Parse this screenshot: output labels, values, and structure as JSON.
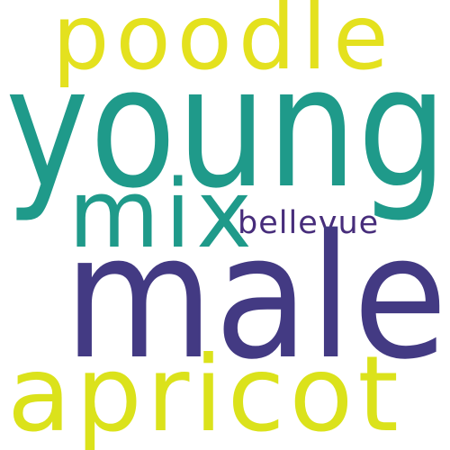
{
  "words": [
    {
      "text": "poodle",
      "color": "#e4e11e"
    },
    {
      "text": "young",
      "color": "#1f9a8a"
    },
    {
      "text": "mix",
      "color": "#1f9a8a"
    },
    {
      "text": "bellevue",
      "color": "#472d7b"
    },
    {
      "text": "male",
      "color": "#433a83"
    },
    {
      "text": "apricot",
      "color": "#dbe21b"
    }
  ]
}
